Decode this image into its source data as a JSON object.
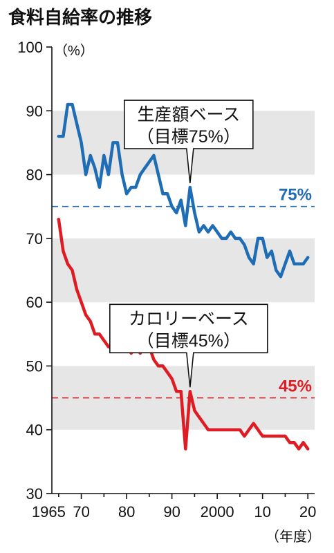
{
  "chart_data": {
    "type": "line",
    "title": "食料自給率の推移",
    "y_unit": "（%）",
    "x_unit": "（年度）",
    "xlim": [
      1963.5,
      2021.5
    ],
    "ylim": [
      30,
      100
    ],
    "grid": "alternating gray bands every 10 points",
    "y_ticks": [
      30,
      40,
      50,
      60,
      70,
      80,
      90,
      100
    ],
    "y_tick_labels": [
      "30",
      "40",
      "50",
      "60",
      "70",
      "80",
      "90",
      "100"
    ],
    "x_ticks": [
      1965,
      1970,
      1980,
      1990,
      2000,
      2010,
      2020
    ],
    "x_tick_labels": [
      "1965",
      "70",
      "80",
      "90",
      "2000",
      "10",
      "20"
    ],
    "colors": {
      "value_based": "#1f6db5",
      "calorie_based": "#dd1d23",
      "band": "#e6e6e6"
    },
    "series": [
      {
        "key": "value_based",
        "x": [
          1965,
          1966,
          1967,
          1968,
          1969,
          1970,
          1971,
          1972,
          1973,
          1974,
          1975,
          1976,
          1977,
          1978,
          1979,
          1980,
          1981,
          1982,
          1983,
          1984,
          1985,
          1986,
          1987,
          1988,
          1989,
          1990,
          1991,
          1992,
          1993,
          1994,
          1995,
          1996,
          1997,
          1998,
          1999,
          2000,
          2001,
          2002,
          2003,
          2004,
          2005,
          2006,
          2007,
          2008,
          2009,
          2010,
          2011,
          2012,
          2013,
          2014,
          2015,
          2016,
          2017,
          2018,
          2019,
          2020
        ],
        "y": [
          86,
          86,
          91,
          91,
          88,
          85,
          80,
          83,
          81,
          78,
          83,
          80,
          85,
          85,
          80,
          77,
          78,
          78,
          80,
          81,
          82,
          83,
          80,
          77,
          77,
          75,
          74,
          76,
          72,
          78,
          74,
          71,
          72,
          71,
          72,
          71,
          70,
          70,
          71,
          70,
          70,
          69,
          67,
          66,
          70,
          70,
          67,
          68,
          65,
          64,
          66,
          68,
          66,
          66,
          66,
          67
        ]
      },
      {
        "key": "calorie_based",
        "x": [
          1965,
          1966,
          1967,
          1968,
          1969,
          1970,
          1971,
          1972,
          1973,
          1974,
          1975,
          1976,
          1977,
          1978,
          1979,
          1980,
          1981,
          1982,
          1983,
          1984,
          1985,
          1986,
          1987,
          1988,
          1989,
          1990,
          1991,
          1992,
          1993,
          1994,
          1995,
          1996,
          1997,
          1998,
          1999,
          2000,
          2001,
          2002,
          2003,
          2004,
          2005,
          2006,
          2007,
          2008,
          2009,
          2010,
          2011,
          2012,
          2013,
          2014,
          2015,
          2016,
          2017,
          2018,
          2019,
          2020
        ],
        "y": [
          73,
          68,
          66,
          65,
          62,
          60,
          58,
          57,
          55,
          55,
          54,
          53,
          53,
          54,
          54,
          53,
          52,
          53,
          52,
          53,
          53,
          51,
          50,
          50,
          49,
          48,
          46,
          46,
          37,
          46,
          43,
          42,
          41,
          40,
          40,
          40,
          40,
          40,
          40,
          40,
          40,
          39,
          40,
          41,
          40,
          39,
          39,
          39,
          39,
          39,
          39,
          38,
          38,
          37,
          38,
          37
        ]
      }
    ],
    "callouts": [
      {
        "series": "value_based",
        "line1": "生産額ベース",
        "line2": "（目標75%）",
        "anchor_x": 1994,
        "anchor_y": 78
      },
      {
        "series": "calorie_based",
        "line1": "カロリーベース",
        "line2": "（目標45%）",
        "anchor_x": 1994,
        "anchor_y": 46
      }
    ],
    "targets": [
      {
        "series": "value_based",
        "value": 75,
        "label": "75%"
      },
      {
        "series": "calorie_based",
        "value": 45,
        "label": "45%"
      }
    ]
  }
}
